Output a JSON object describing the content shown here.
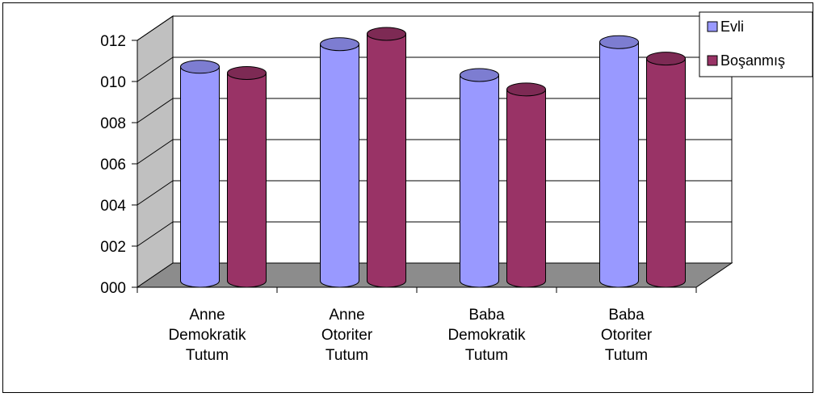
{
  "chart_data": {
    "type": "bar",
    "title": "",
    "xlabel": "",
    "ylabel": "",
    "ylim": [
      0,
      12
    ],
    "yticks": [
      "000",
      "002",
      "004",
      "006",
      "008",
      "010",
      "012"
    ],
    "categories": [
      [
        "Anne",
        "Demokratik",
        "Tutum"
      ],
      [
        "Anne",
        "Otoriter",
        "Tutum"
      ],
      [
        "Baba",
        "Demokratik",
        "Tutum"
      ],
      [
        "Baba",
        "Otoriter",
        "Tutum"
      ]
    ],
    "series": [
      {
        "name": "Evli",
        "color": "#9999ff",
        "values": [
          10.4,
          11.5,
          10.0,
          11.6
        ]
      },
      {
        "name": "Boşanmış",
        "color": "#993366",
        "values": [
          10.1,
          12.0,
          9.3,
          10.8
        ]
      }
    ],
    "grid": true,
    "legend": "top-right",
    "style": "3d-cylinder"
  }
}
